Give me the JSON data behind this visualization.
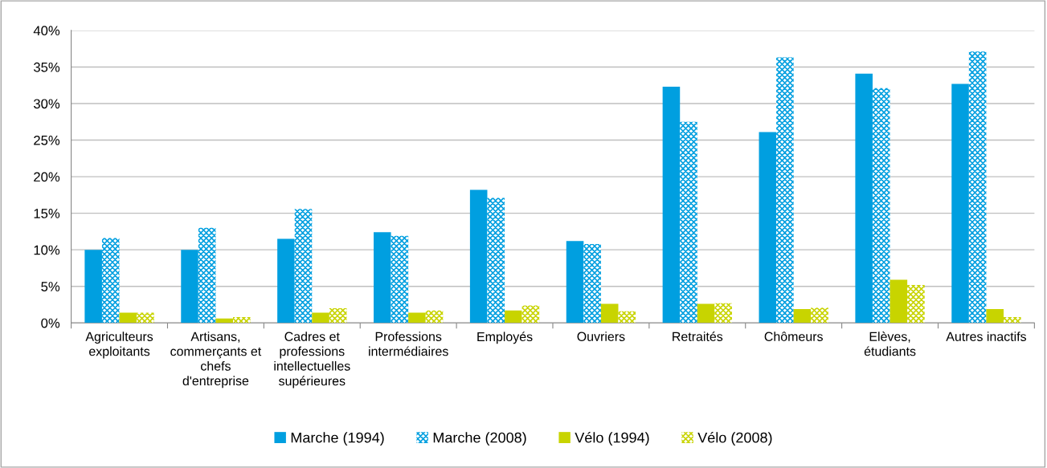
{
  "chart_data": {
    "type": "bar",
    "categories": [
      "Agriculteurs exploitants",
      "Artisans, commerçants et chefs d'entreprise",
      "Cadres et professions intellectuelles supérieures",
      "Professions intermédiaires",
      "Employés",
      "Ouvriers",
      "Retraités",
      "Chômeurs",
      "Elèves, étudiants",
      "Autres inactifs"
    ],
    "series": [
      {
        "name": "Marche (1994)",
        "color": "#009fe0",
        "values": [
          10.0,
          10.0,
          11.5,
          12.4,
          18.2,
          11.2,
          32.3,
          26.1,
          34.1,
          32.7
        ]
      },
      {
        "name": "Marche (2008)",
        "color": "#009fe0",
        "values": [
          11.6,
          13.0,
          15.6,
          11.9,
          17.1,
          10.8,
          27.5,
          36.3,
          32.1,
          37.1
        ]
      },
      {
        "name": "Vélo (1994)",
        "color": "#c8d400",
        "values": [
          1.4,
          0.6,
          1.4,
          1.4,
          1.7,
          2.6,
          2.6,
          1.9,
          5.9,
          1.9
        ]
      },
      {
        "name": "Vélo (2008)",
        "color": "#c8d400",
        "values": [
          1.4,
          0.8,
          2.0,
          1.7,
          2.4,
          1.6,
          2.7,
          2.1,
          5.2,
          0.8
        ]
      }
    ],
    "ylim": [
      0,
      40
    ],
    "yticks": [
      {
        "value": 0,
        "label": "0%"
      },
      {
        "value": 5,
        "label": "5%"
      },
      {
        "value": 10,
        "label": "10%"
      },
      {
        "value": 15,
        "label": "15%"
      },
      {
        "value": 20,
        "label": "20%"
      },
      {
        "value": 25,
        "label": "25%"
      },
      {
        "value": 30,
        "label": "30%"
      },
      {
        "value": 35,
        "label": "35%"
      },
      {
        "value": 40,
        "label": "40%"
      }
    ],
    "grid": "y",
    "legend": "bottom"
  }
}
